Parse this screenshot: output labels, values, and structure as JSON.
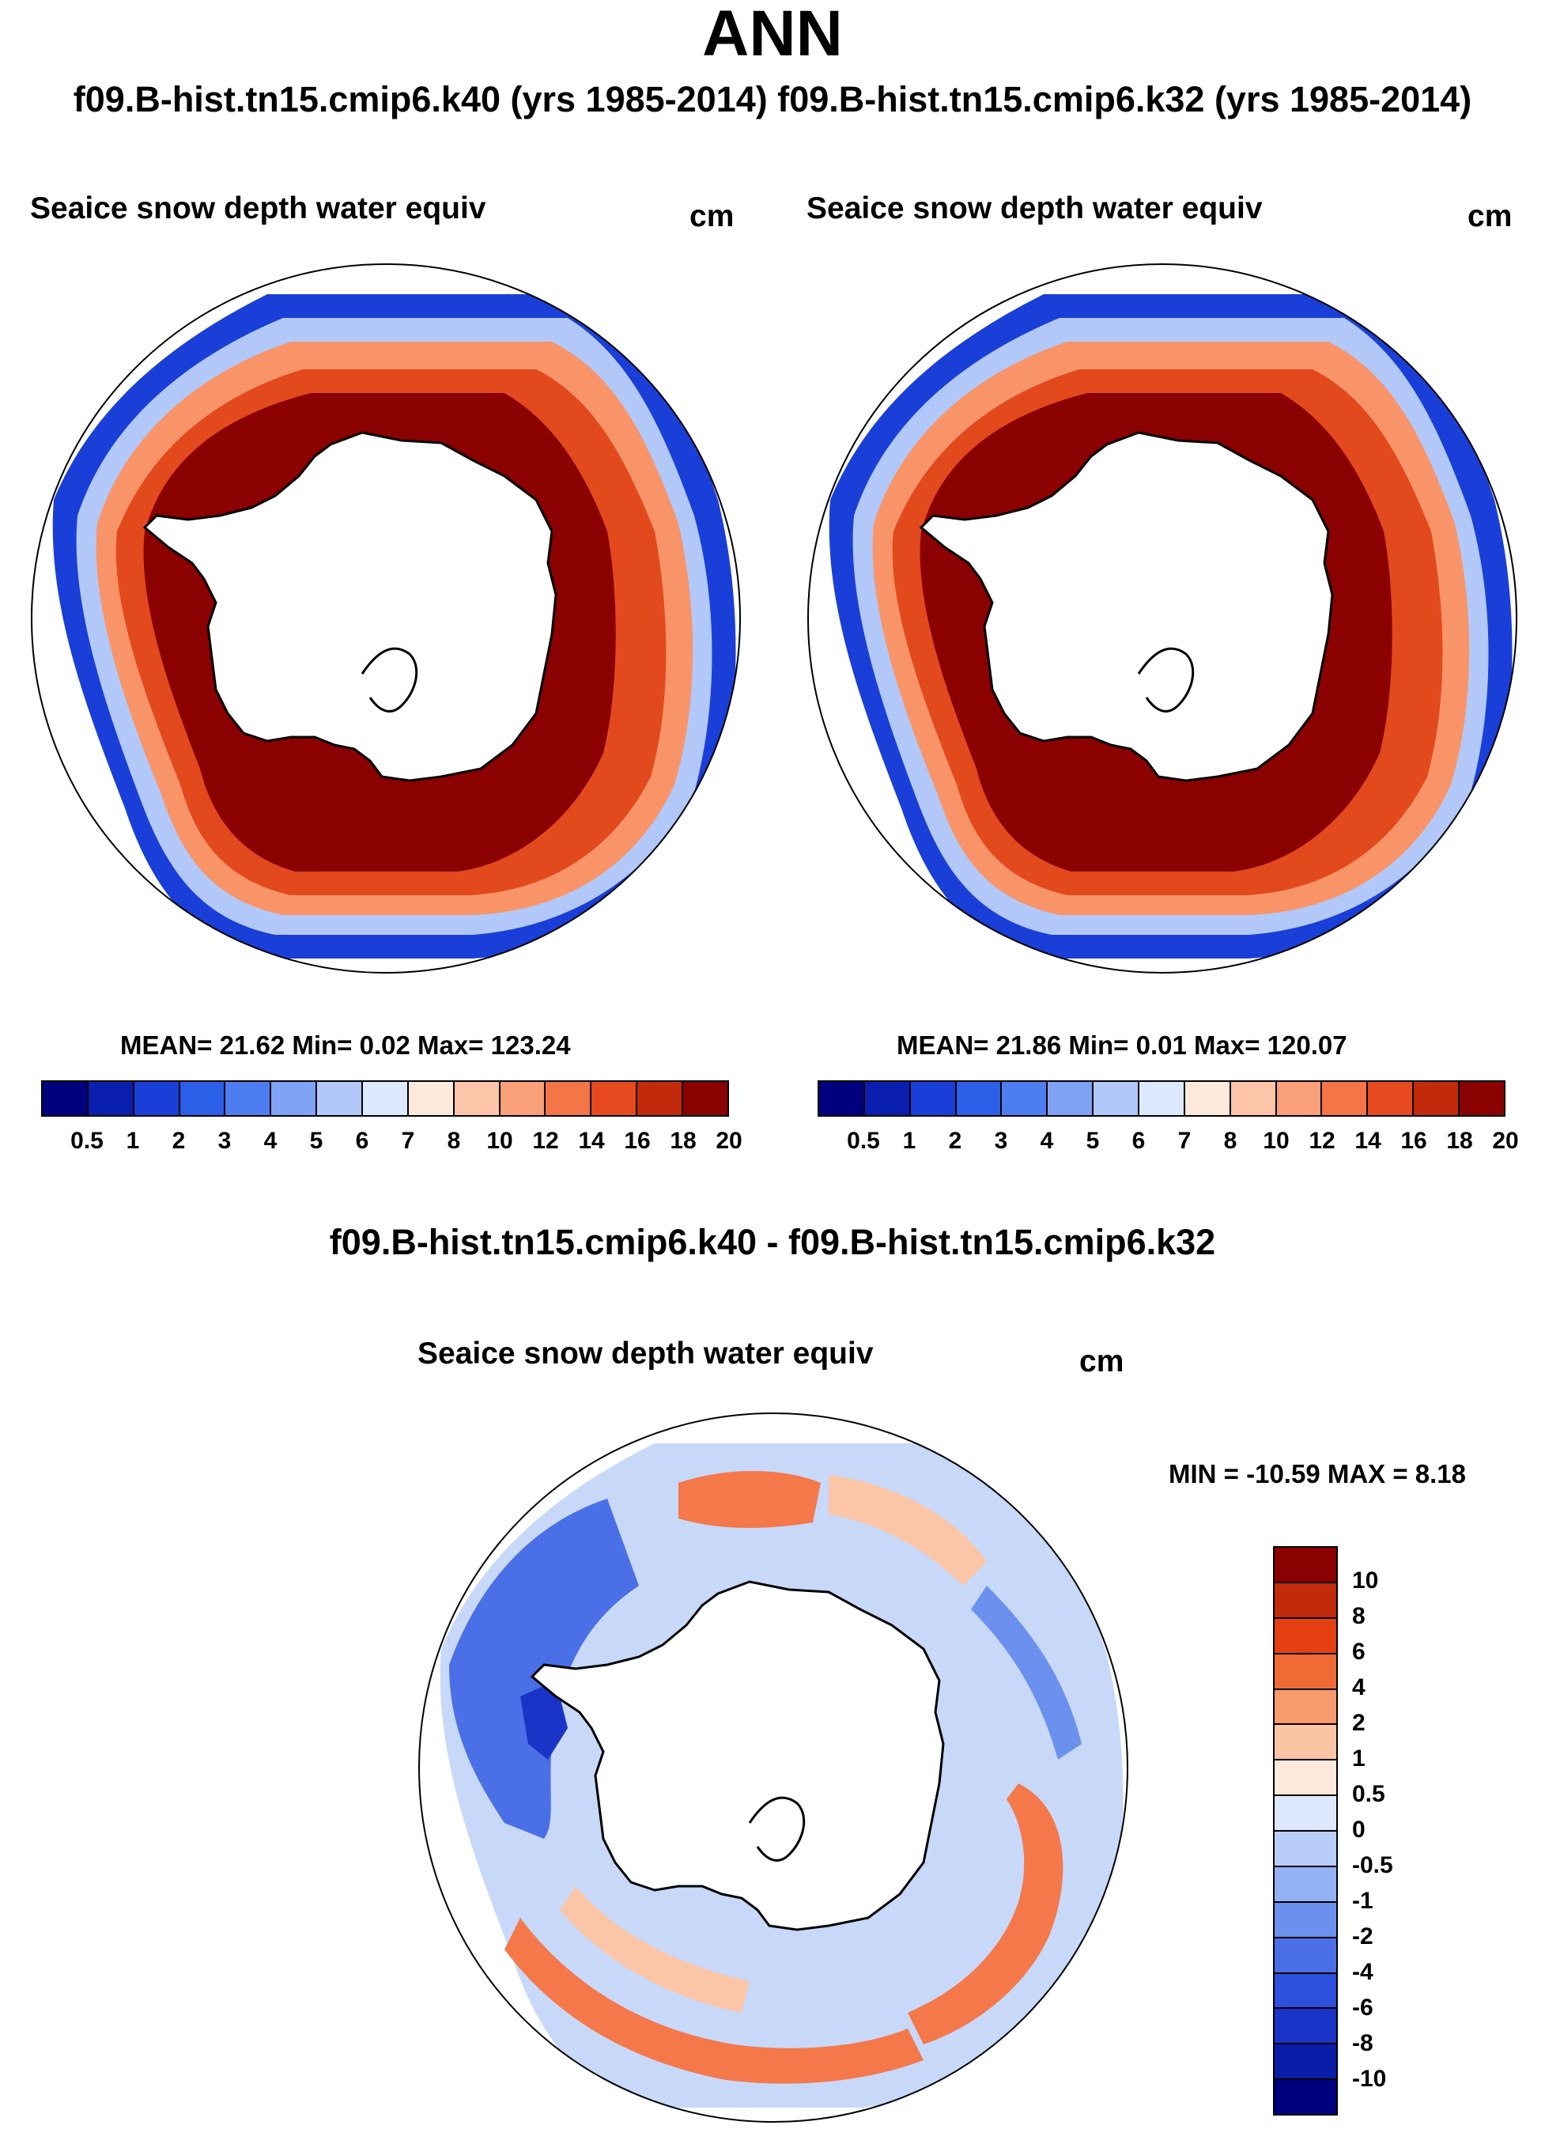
{
  "title": "ANN",
  "subtitle": "f09.B-hist.tn15.cmip6.k40 (yrs 1985-2014) f09.B-hist.tn15.cmip6.k32 (yrs 1985-2014)",
  "panels": [
    {
      "case": "f09.B-hist.tn15.cmip6.k40",
      "variable": "Seaice snow depth water equiv",
      "units": "cm",
      "stats": "MEAN=  21.62  Min=   0.02  Max= 123.24"
    },
    {
      "case": "f09.B-hist.tn15.cmip6.k32",
      "variable": "Seaice snow depth water equiv",
      "units": "cm",
      "stats": "MEAN=  21.86  Min=   0.01  Max= 120.07"
    }
  ],
  "difference": {
    "title": "f09.B-hist.tn15.cmip6.k40 - f09.B-hist.tn15.cmip6.k32",
    "variable": "Seaice snow depth water equiv",
    "units": "cm",
    "stats": "MIN = -10.59 MAX =   8.18"
  },
  "colorbar_main": {
    "labels": [
      "0.5",
      "1",
      "2",
      "3",
      "4",
      "5",
      "6",
      "7",
      "8",
      "10",
      "12",
      "14",
      "16",
      "18",
      "20"
    ],
    "colors": [
      "#00007f",
      "#0a1fb0",
      "#1a3fd8",
      "#2b5fe8",
      "#4d7df0",
      "#7fa2f4",
      "#b1c8f8",
      "#dde8fc",
      "#fde8dc",
      "#fcc4a8",
      "#f9a078",
      "#f47547",
      "#e64a1e",
      "#c12a0b",
      "#8b0000"
    ]
  },
  "colorbar_diff": {
    "labels": [
      "10",
      "8",
      "6",
      "4",
      "2",
      "1",
      "0.5",
      "0",
      "-0.5",
      "-1",
      "-2",
      "-4",
      "-6",
      "-8",
      "-10"
    ],
    "colors": [
      "#8b0000",
      "#c12a0b",
      "#e43f12",
      "#f06a35",
      "#f79a6c",
      "#fbc4a4",
      "#fde8dc",
      "#dde8fc",
      "#b8cdf8",
      "#93b1f4",
      "#6b90ee",
      "#4a6fe6",
      "#2d4fdc",
      "#1a34c8",
      "#0a1da8",
      "#00007f"
    ]
  },
  "map_colors": {
    "land": "#ffffff",
    "coast": "#000000",
    "high": "#8b0000",
    "mid": "#e2491d",
    "low": "#f99468",
    "edge_blue": "#1a3fd8",
    "edge_light": "#b1c8f8",
    "diff_pos": "#f4784a",
    "diff_pos_light": "#fbc6a8",
    "diff_neg": "#4a6fe6",
    "diff_neg_light": "#c8d8f8"
  }
}
